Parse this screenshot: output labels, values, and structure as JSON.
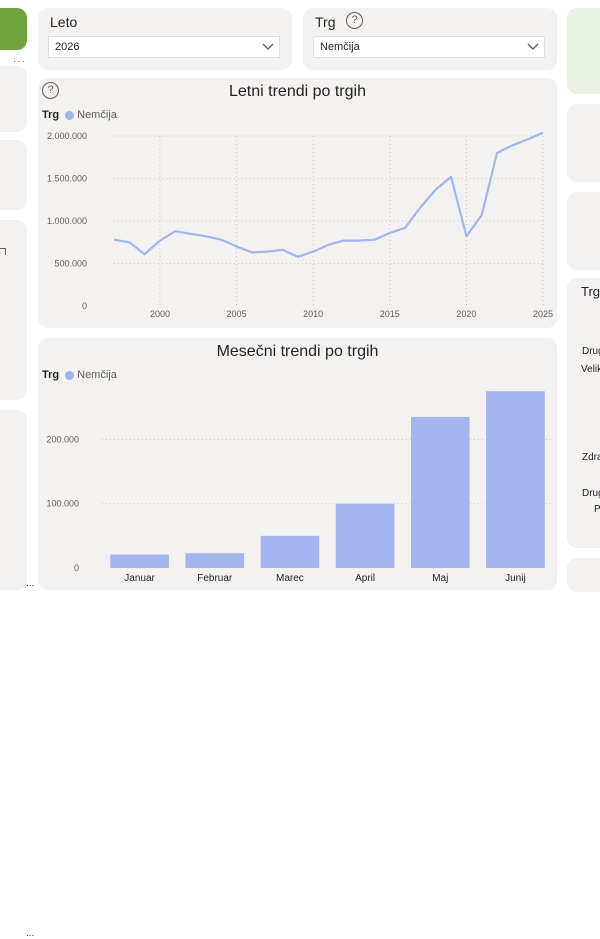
{
  "slicers": {
    "year": {
      "title": "Leto",
      "value": "2026"
    },
    "market": {
      "title": "Trg",
      "value": "Nemčija"
    }
  },
  "yearly_chart": {
    "title": "Letni trendi po trgih",
    "legend_title": "Trg",
    "legend_item": "Nemčija"
  },
  "monthly_chart": {
    "title": "Mesečni trendi po trgih",
    "legend_title": "Trg",
    "legend_item": "Nemčija"
  },
  "right_panel": {
    "title": "Trg",
    "labels": [
      "Drug",
      "Velik",
      "Zdra",
      "Drug",
      "P"
    ]
  },
  "left_panel": {
    "more": "..."
  },
  "colors": {
    "series": "#a3b4ee",
    "brand": "#70a23c",
    "card": "#f3f2f1"
  },
  "chart_data": [
    {
      "type": "line",
      "title": "Letni trendi po trgih",
      "series": [
        {
          "name": "Nemčija",
          "x": [
            1997,
            1998,
            1999,
            2000,
            2001,
            2002,
            2003,
            2004,
            2005,
            2006,
            2007,
            2008,
            2009,
            2010,
            2011,
            2012,
            2013,
            2014,
            2015,
            2016,
            2017,
            2018,
            2019,
            2020,
            2021,
            2022,
            2023,
            2024,
            2025
          ],
          "values": [
            780000,
            750000,
            610000,
            770000,
            880000,
            850000,
            820000,
            780000,
            700000,
            630000,
            640000,
            660000,
            580000,
            640000,
            720000,
            770000,
            770000,
            780000,
            860000,
            920000,
            1160000,
            1370000,
            1520000,
            820000,
            1070000,
            1800000,
            1890000,
            1960000,
            2040000
          ]
        }
      ],
      "xticks": [
        2000,
        2005,
        2010,
        2015,
        2020,
        2025
      ],
      "yticks": [
        "0",
        "500.000",
        "1.000.000",
        "1.500.000",
        "2.000.000"
      ],
      "ytick_values": [
        0,
        500000,
        1000000,
        1500000,
        2000000
      ],
      "xlim": [
        1997,
        2025
      ],
      "ylim": [
        0,
        2000000
      ],
      "grid": true,
      "legend": "top-left"
    },
    {
      "type": "bar",
      "title": "Mesečni trendi po trgih",
      "categories": [
        "Januar",
        "Februar",
        "Marec",
        "April",
        "Maj",
        "Junij"
      ],
      "series": [
        {
          "name": "Nemčija",
          "values": [
            21000,
            23000,
            50000,
            100000,
            235000,
            275000
          ]
        }
      ],
      "yticks": [
        "0",
        "100.000",
        "200.000"
      ],
      "ytick_values": [
        0,
        100000,
        200000
      ],
      "ylim": [
        0,
        280000
      ],
      "grid": true,
      "legend": "top-left"
    }
  ]
}
